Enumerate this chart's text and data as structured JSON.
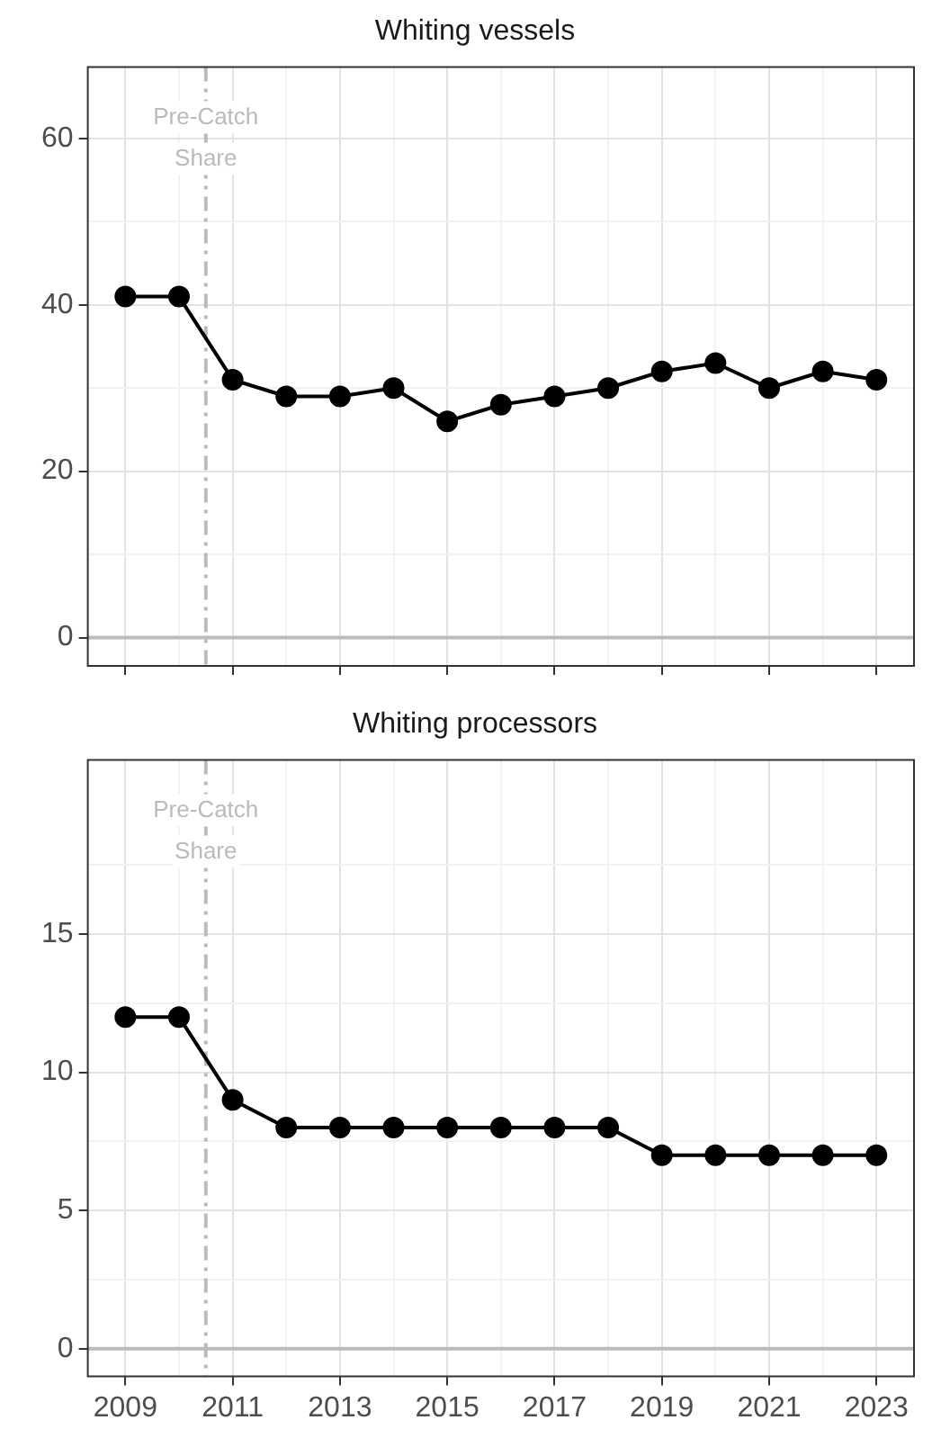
{
  "chart_data": [
    {
      "type": "line",
      "title": "Whiting vessels",
      "x": [
        2009,
        2010,
        2011,
        2012,
        2013,
        2014,
        2015,
        2016,
        2017,
        2018,
        2019,
        2020,
        2021,
        2022,
        2023
      ],
      "series": [
        {
          "color": "#000000",
          "values": [
            41,
            41,
            31,
            29,
            29,
            30,
            26,
            28,
            29,
            30,
            32,
            33,
            30,
            32,
            31
          ]
        }
      ],
      "xlim": [
        2008.3,
        2023.7
      ],
      "xticks": [
        2009,
        {
          "value": 2010,
          "label": null
        },
        2011,
        {
          "value": 2012,
          "label": null
        },
        2013,
        {
          "value": 2014,
          "label": null
        },
        2015,
        {
          "value": 2016,
          "label": null
        },
        2017,
        {
          "value": 2018,
          "label": null
        },
        2019,
        {
          "value": 2020,
          "label": null
        },
        2021,
        {
          "value": 2022,
          "label": null
        },
        2023
      ],
      "ylim": [
        -3.4,
        68.6
      ],
      "yticks": [
        0,
        {
          "value": 10,
          "label": null
        },
        20,
        {
          "value": 30,
          "label": null
        },
        40,
        {
          "value": 50,
          "label": null
        },
        60
      ],
      "tick_labels": "y",
      "grid": true,
      "legend": false,
      "marker": "circle",
      "line_style": "solid",
      "ref_lines": [
        {
          "axis": "x",
          "value": 2010.5,
          "label": "Pre-Catch Share",
          "color": "#bbbbbb",
          "line_style": "dashdot"
        },
        {
          "axis": "y",
          "value": 0,
          "color": "#bbbbbb",
          "line_style": "solid"
        }
      ]
    },
    {
      "type": "line",
      "title": "Whiting processors",
      "x": [
        2009,
        2010,
        2011,
        2012,
        2013,
        2014,
        2015,
        2016,
        2017,
        2018,
        2019,
        2020,
        2021,
        2022,
        2023
      ],
      "series": [
        {
          "color": "#000000",
          "values": [
            12,
            12,
            9,
            8,
            8,
            8,
            8,
            8,
            8,
            8,
            7,
            7,
            7,
            7,
            7
          ]
        }
      ],
      "xlim": [
        2008.3,
        2023.7
      ],
      "xticks": [
        2009,
        {
          "value": 2010,
          "label": null
        },
        2011,
        {
          "value": 2012,
          "label": null
        },
        2013,
        {
          "value": 2014,
          "label": null
        },
        2015,
        {
          "value": 2016,
          "label": null
        },
        2017,
        {
          "value": 2018,
          "label": null
        },
        2019,
        {
          "value": 2020,
          "label": null
        },
        2021,
        {
          "value": 2022,
          "label": null
        },
        2023
      ],
      "ylim": [
        -1,
        21.3
      ],
      "yticks": [
        0,
        {
          "value": 2.5,
          "label": null
        },
        5,
        {
          "value": 7.5,
          "label": null
        },
        10,
        {
          "value": 12.5,
          "label": null
        },
        15,
        {
          "value": 17.5,
          "label": null
        }
      ],
      "grid": true,
      "legend": false,
      "marker": "circle",
      "line_style": "solid",
      "ref_lines": [
        {
          "axis": "x",
          "value": 2010.5,
          "label": "Pre-Catch Share",
          "color": "#bbbbbb",
          "line_style": "dashdot"
        },
        {
          "axis": "y",
          "value": 0,
          "color": "#bbbbbb",
          "line_style": "solid"
        }
      ]
    }
  ]
}
